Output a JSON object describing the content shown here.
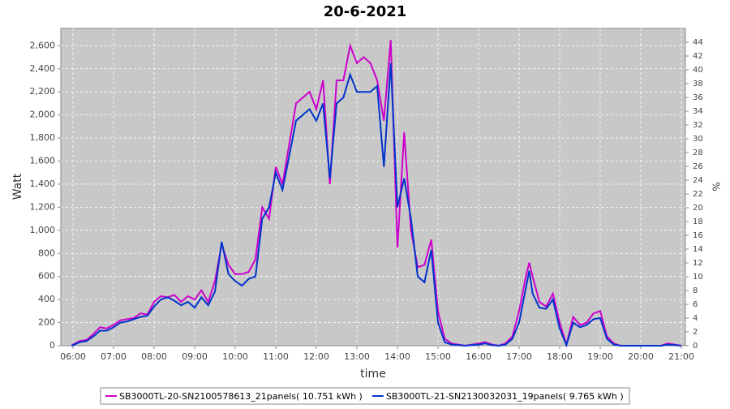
{
  "chart_data": {
    "type": "line",
    "title": "20-6-2021",
    "x_label": "time",
    "y_label": "Watt",
    "y2_label": "%",
    "x": [
      "05:58",
      "06:00",
      "06:10",
      "06:20",
      "06:30",
      "06:40",
      "06:50",
      "07:00",
      "07:10",
      "07:20",
      "07:30",
      "07:40",
      "07:50",
      "08:00",
      "08:10",
      "08:20",
      "08:30",
      "08:40",
      "08:50",
      "09:00",
      "09:10",
      "09:20",
      "09:30",
      "09:40",
      "09:50",
      "10:00",
      "10:10",
      "10:20",
      "10:30",
      "10:40",
      "10:50",
      "11:00",
      "11:10",
      "11:20",
      "11:30",
      "11:40",
      "11:50",
      "12:00",
      "12:10",
      "12:20",
      "12:30",
      "12:40",
      "12:50",
      "13:00",
      "13:10",
      "13:20",
      "13:30",
      "13:40",
      "13:50",
      "14:00",
      "14:10",
      "14:20",
      "14:30",
      "14:40",
      "14:50",
      "15:00",
      "15:10",
      "15:20",
      "15:30",
      "15:40",
      "15:50",
      "16:00",
      "16:10",
      "16:20",
      "16:30",
      "16:40",
      "16:50",
      "17:00",
      "17:10",
      "17:15",
      "17:20",
      "17:30",
      "17:40",
      "17:50",
      "18:00",
      "18:10",
      "18:20",
      "18:30",
      "18:40",
      "18:50",
      "19:00",
      "19:10",
      "19:20",
      "19:30",
      "19:45",
      "20:00",
      "20:15",
      "20:30",
      "20:40",
      "20:50",
      "21:00"
    ],
    "series": [
      {
        "name": "SB3000TL-20-SN2100578613_21panels( 10.751 kWh )",
        "color": "#cc00cc",
        "values": [
          0,
          10,
          40,
          50,
          100,
          160,
          150,
          180,
          220,
          230,
          240,
          280,
          270,
          380,
          430,
          420,
          440,
          380,
          430,
          400,
          480,
          380,
          560,
          880,
          700,
          620,
          620,
          640,
          750,
          1200,
          1100,
          1550,
          1400,
          1750,
          2100,
          2150,
          2200,
          2050,
          2300,
          1400,
          2300,
          2300,
          2600,
          2450,
          2500,
          2450,
          2300,
          1950,
          2650,
          850,
          1850,
          1000,
          680,
          700,
          920,
          300,
          60,
          20,
          10,
          0,
          10,
          20,
          30,
          10,
          0,
          20,
          80,
          300,
          600,
          720,
          600,
          380,
          340,
          450,
          200,
          10,
          250,
          180,
          200,
          280,
          300,
          80,
          20,
          0,
          0,
          0,
          0,
          0,
          20,
          10,
          0
        ]
      },
      {
        "name": "SB3000TL-21-SN2130032031_19panels( 9.765 kWh )",
        "color": "#0033cc",
        "values": [
          0,
          5,
          30,
          40,
          80,
          130,
          130,
          160,
          200,
          210,
          230,
          250,
          260,
          340,
          400,
          420,
          390,
          350,
          380,
          330,
          420,
          350,
          470,
          900,
          620,
          560,
          520,
          580,
          600,
          1100,
          1200,
          1500,
          1350,
          1650,
          1950,
          2000,
          2050,
          1950,
          2100,
          1450,
          2100,
          2150,
          2350,
          2200,
          2200,
          2200,
          2250,
          1550,
          2450,
          1200,
          1450,
          1100,
          600,
          550,
          830,
          200,
          30,
          10,
          5,
          0,
          5,
          10,
          20,
          5,
          0,
          10,
          60,
          200,
          500,
          650,
          450,
          330,
          320,
          400,
          150,
          5,
          200,
          160,
          180,
          230,
          240,
          60,
          10,
          0,
          0,
          0,
          0,
          0,
          10,
          5,
          0
        ]
      }
    ],
    "xlim": [
      "05:42",
      "21:06"
    ],
    "xticks": [
      "06:00",
      "07:00",
      "08:00",
      "09:00",
      "10:00",
      "11:00",
      "12:00",
      "13:00",
      "14:00",
      "15:00",
      "16:00",
      "17:00",
      "18:00",
      "19:00",
      "20:00",
      "21:00"
    ],
    "ylim": [
      0,
      2750
    ],
    "yticks": [
      0,
      200,
      400,
      600,
      800,
      {
        "value": 1000,
        "label": "1,000"
      },
      {
        "value": 1200,
        "label": "1,200"
      },
      {
        "value": 1400,
        "label": "1,400"
      },
      {
        "value": 1600,
        "label": "1,600"
      },
      {
        "value": 1800,
        "label": "1,800"
      },
      {
        "value": 2000,
        "label": "2,000"
      },
      {
        "value": 2200,
        "label": "2,200"
      },
      {
        "value": 2400,
        "label": "2,400"
      },
      {
        "value": 2600,
        "label": "2,600"
      }
    ],
    "y2lim": [
      0,
      46
    ],
    "y2ticks": [
      0,
      2,
      4,
      6,
      8,
      10,
      12,
      14,
      16,
      18,
      20,
      22,
      24,
      26,
      28,
      30,
      32,
      34,
      36,
      38,
      40,
      42,
      44
    ],
    "grid": true,
    "legend": "bottom"
  }
}
